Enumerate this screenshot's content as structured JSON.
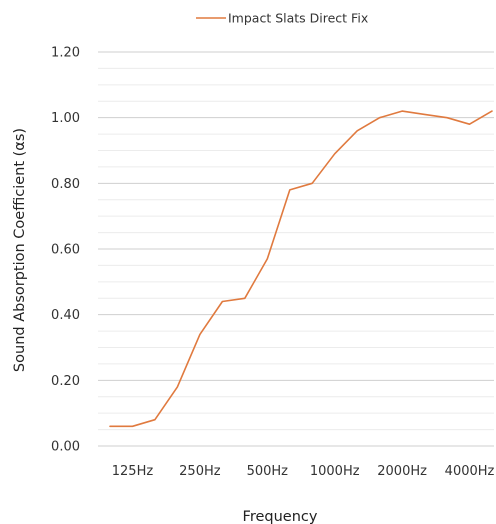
{
  "chart_data": {
    "type": "line",
    "xlabel": "Frequency",
    "ylabel": "Sound Absorption Coefficient (αs)",
    "ylim": [
      0,
      1.2
    ],
    "y_ticks": [
      "0.00",
      "0.20",
      "0.40",
      "0.60",
      "0.80",
      "1.00",
      "1.20"
    ],
    "y_minor_step": 0.05,
    "x_tick_labels": [
      "125Hz",
      "250Hz",
      "500Hz",
      "1000Hz",
      "2000Hz",
      "4000Hz"
    ],
    "x": [
      "100Hz",
      "125Hz",
      "160Hz",
      "200Hz",
      "250Hz",
      "315Hz",
      "400Hz",
      "500Hz",
      "630Hz",
      "800Hz",
      "1000Hz",
      "1250Hz",
      "1600Hz",
      "2000Hz",
      "2500Hz",
      "3150Hz",
      "4000Hz",
      "5000Hz"
    ],
    "grid": true,
    "legend_position": "top-center",
    "series": [
      {
        "name": "Impact Slats Direct Fix",
        "color": "#e07a3f",
        "values": [
          0.06,
          0.06,
          0.08,
          0.18,
          0.34,
          0.44,
          0.45,
          0.57,
          0.78,
          0.8,
          0.89,
          0.96,
          1.0,
          1.02,
          1.01,
          1.0,
          0.98,
          1.02
        ]
      }
    ]
  }
}
